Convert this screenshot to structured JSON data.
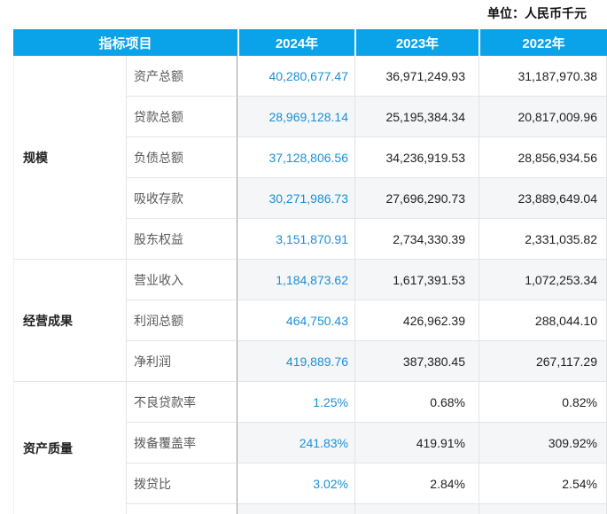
{
  "unit_label": "单位：人民币千元",
  "table": {
    "headers": {
      "indicator": "指标项目",
      "y2024": "2024年",
      "y2023": "2023年",
      "y2022": "2022年"
    },
    "groups": [
      {
        "name": "规模",
        "rows": [
          {
            "label": "资产总额",
            "y2024": "40,280,677.47",
            "y2023": "36,971,249.93",
            "y2022": "31,187,970.38"
          },
          {
            "label": "贷款总额",
            "y2024": "28,969,128.14",
            "y2023": "25,195,384.34",
            "y2022": "20,817,009.96"
          },
          {
            "label": "负债总额",
            "y2024": "37,128,806.56",
            "y2023": "34,236,919.53",
            "y2022": "28,856,934.56"
          },
          {
            "label": "吸收存款",
            "y2024": "30,271,986.73",
            "y2023": "27,696,290.73",
            "y2022": "23,889,649.04"
          },
          {
            "label": "股东权益",
            "y2024": "3,151,870.91",
            "y2023": "2,734,330.39",
            "y2022": "2,331,035.82"
          }
        ]
      },
      {
        "name": "经营成果",
        "rows": [
          {
            "label": "营业收入",
            "y2024": "1,184,873.62",
            "y2023": "1,617,391.53",
            "y2022": "1,072,253.34"
          },
          {
            "label": "利润总额",
            "y2024": "464,750.43",
            "y2023": "426,962.39",
            "y2022": "288,044.10"
          },
          {
            "label": "净利润",
            "y2024": "419,889.76",
            "y2023": "387,380.45",
            "y2022": "267,117.29"
          }
        ]
      },
      {
        "name": "资产质量",
        "rows": [
          {
            "label": "不良贷款率",
            "y2024": "1.25%",
            "y2023": "0.68%",
            "y2022": "0.82%"
          },
          {
            "label": "拨备覆盖率",
            "y2024": "241.83%",
            "y2023": "419.91%",
            "y2022": "309.92%"
          },
          {
            "label": "拨贷比",
            "y2024": "3.02%",
            "y2023": "2.84%",
            "y2022": "2.54%"
          }
        ]
      }
    ]
  },
  "colors": {
    "header_bg": "#0aa3ea",
    "accent_blue": "#1a8fd8",
    "stripe": "#f5f6f8",
    "border_light": "#e4e4e4",
    "border_dark": "#9a9a9a",
    "text_dark": "#1f1f1f",
    "text_label": "#595959"
  }
}
